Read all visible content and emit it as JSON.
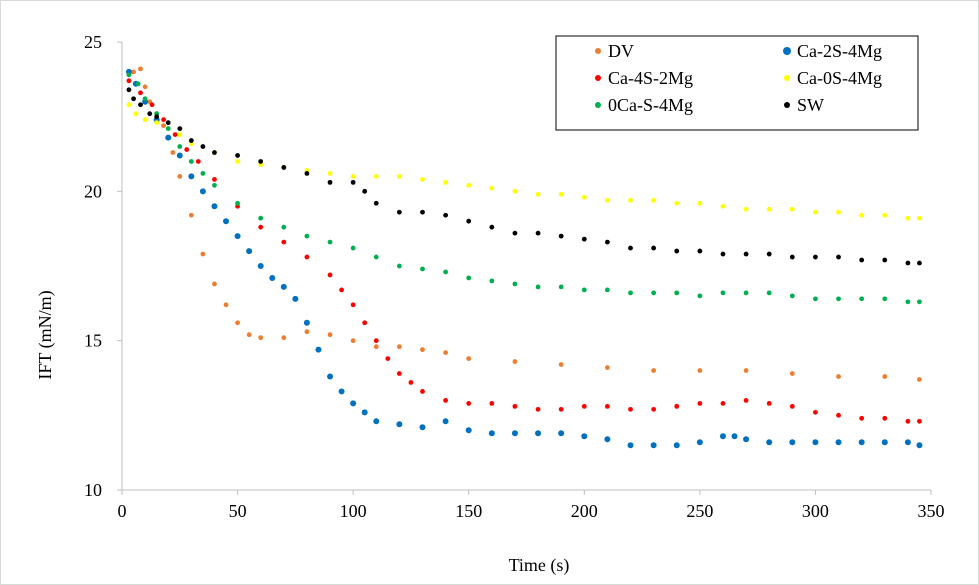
{
  "chart_data": {
    "type": "scatter",
    "title": "",
    "xlabel": "Time (s)",
    "ylabel": "IFT (mN/m)",
    "xlim": [
      0,
      350
    ],
    "ylim": [
      10,
      25
    ],
    "x_ticks": [
      0,
      50,
      100,
      150,
      200,
      250,
      300,
      350
    ],
    "y_ticks": [
      10,
      15,
      20,
      25
    ],
    "grid": false,
    "legend_position": "top-right",
    "series": [
      {
        "name": "DV",
        "color": "#ED7D31",
        "points": [
          [
            3,
            23.9
          ],
          [
            5,
            24.0
          ],
          [
            8,
            24.1
          ],
          [
            10,
            23.5
          ],
          [
            12,
            23.0
          ],
          [
            15,
            22.6
          ],
          [
            18,
            22.2
          ],
          [
            20,
            21.8
          ],
          [
            22,
            21.3
          ],
          [
            25,
            20.5
          ],
          [
            30,
            19.2
          ],
          [
            35,
            17.9
          ],
          [
            40,
            16.9
          ],
          [
            45,
            16.2
          ],
          [
            50,
            15.6
          ],
          [
            55,
            15.2
          ],
          [
            60,
            15.1
          ],
          [
            70,
            15.1
          ],
          [
            80,
            15.3
          ],
          [
            90,
            15.2
          ],
          [
            100,
            15.0
          ],
          [
            110,
            14.8
          ],
          [
            120,
            14.8
          ],
          [
            130,
            14.7
          ],
          [
            140,
            14.6
          ],
          [
            150,
            14.4
          ],
          [
            170,
            14.3
          ],
          [
            190,
            14.2
          ],
          [
            210,
            14.1
          ],
          [
            230,
            14.0
          ],
          [
            250,
            14.0
          ],
          [
            270,
            14.0
          ],
          [
            290,
            13.9
          ],
          [
            310,
            13.8
          ],
          [
            330,
            13.8
          ],
          [
            345,
            13.7
          ]
        ]
      },
      {
        "name": "Ca-2S-4Mg",
        "color": "#0070C0",
        "points": [
          [
            3,
            24.0
          ],
          [
            6,
            23.6
          ],
          [
            10,
            23.0
          ],
          [
            15,
            22.4
          ],
          [
            20,
            21.8
          ],
          [
            25,
            21.2
          ],
          [
            30,
            20.5
          ],
          [
            35,
            20.0
          ],
          [
            40,
            19.5
          ],
          [
            45,
            19.0
          ],
          [
            50,
            18.5
          ],
          [
            55,
            18.0
          ],
          [
            60,
            17.5
          ],
          [
            65,
            17.1
          ],
          [
            70,
            16.8
          ],
          [
            75,
            16.4
          ],
          [
            80,
            15.6
          ],
          [
            85,
            14.7
          ],
          [
            90,
            13.8
          ],
          [
            95,
            13.3
          ],
          [
            100,
            12.9
          ],
          [
            105,
            12.6
          ],
          [
            110,
            12.3
          ],
          [
            120,
            12.2
          ],
          [
            130,
            12.1
          ],
          [
            140,
            12.3
          ],
          [
            150,
            12.0
          ],
          [
            160,
            11.9
          ],
          [
            170,
            11.9
          ],
          [
            180,
            11.9
          ],
          [
            190,
            11.9
          ],
          [
            200,
            11.8
          ],
          [
            210,
            11.7
          ],
          [
            220,
            11.5
          ],
          [
            230,
            11.5
          ],
          [
            240,
            11.5
          ],
          [
            250,
            11.6
          ],
          [
            260,
            11.8
          ],
          [
            265,
            11.8
          ],
          [
            270,
            11.7
          ],
          [
            280,
            11.6
          ],
          [
            290,
            11.6
          ],
          [
            300,
            11.6
          ],
          [
            310,
            11.6
          ],
          [
            320,
            11.6
          ],
          [
            330,
            11.6
          ],
          [
            340,
            11.6
          ],
          [
            345,
            11.5
          ]
        ]
      },
      {
        "name": "Ca-4S-2Mg",
        "color": "#FF0000",
        "points": [
          [
            3,
            23.7
          ],
          [
            8,
            23.3
          ],
          [
            13,
            22.9
          ],
          [
            18,
            22.4
          ],
          [
            23,
            21.9
          ],
          [
            28,
            21.4
          ],
          [
            33,
            21.0
          ],
          [
            40,
            20.4
          ],
          [
            50,
            19.5
          ],
          [
            60,
            18.8
          ],
          [
            70,
            18.3
          ],
          [
            80,
            17.8
          ],
          [
            90,
            17.2
          ],
          [
            95,
            16.7
          ],
          [
            100,
            16.2
          ],
          [
            105,
            15.6
          ],
          [
            110,
            15.0
          ],
          [
            115,
            14.4
          ],
          [
            120,
            13.9
          ],
          [
            125,
            13.6
          ],
          [
            130,
            13.3
          ],
          [
            140,
            13.0
          ],
          [
            150,
            12.9
          ],
          [
            160,
            12.9
          ],
          [
            170,
            12.8
          ],
          [
            180,
            12.7
          ],
          [
            190,
            12.7
          ],
          [
            200,
            12.8
          ],
          [
            210,
            12.8
          ],
          [
            220,
            12.7
          ],
          [
            230,
            12.7
          ],
          [
            240,
            12.8
          ],
          [
            250,
            12.9
          ],
          [
            260,
            12.9
          ],
          [
            270,
            13.0
          ],
          [
            280,
            12.9
          ],
          [
            290,
            12.8
          ],
          [
            300,
            12.6
          ],
          [
            310,
            12.5
          ],
          [
            320,
            12.4
          ],
          [
            330,
            12.4
          ],
          [
            340,
            12.3
          ],
          [
            345,
            12.3
          ]
        ]
      },
      {
        "name": "Ca-0S-4Mg",
        "color": "#FFFF00",
        "points": [
          [
            3,
            22.9
          ],
          [
            6,
            22.6
          ],
          [
            10,
            22.4
          ],
          [
            15,
            22.3
          ],
          [
            20,
            22.1
          ],
          [
            25,
            21.9
          ],
          [
            30,
            21.6
          ],
          [
            40,
            21.3
          ],
          [
            50,
            21.0
          ],
          [
            60,
            20.9
          ],
          [
            70,
            20.8
          ],
          [
            80,
            20.7
          ],
          [
            90,
            20.6
          ],
          [
            100,
            20.5
          ],
          [
            110,
            20.5
          ],
          [
            120,
            20.5
          ],
          [
            130,
            20.4
          ],
          [
            140,
            20.3
          ],
          [
            150,
            20.2
          ],
          [
            160,
            20.1
          ],
          [
            170,
            20.0
          ],
          [
            180,
            19.9
          ],
          [
            190,
            19.9
          ],
          [
            200,
            19.8
          ],
          [
            210,
            19.7
          ],
          [
            220,
            19.7
          ],
          [
            230,
            19.7
          ],
          [
            240,
            19.6
          ],
          [
            250,
            19.6
          ],
          [
            260,
            19.5
          ],
          [
            270,
            19.4
          ],
          [
            280,
            19.4
          ],
          [
            290,
            19.4
          ],
          [
            300,
            19.3
          ],
          [
            310,
            19.3
          ],
          [
            320,
            19.2
          ],
          [
            330,
            19.2
          ],
          [
            340,
            19.1
          ],
          [
            345,
            19.1
          ]
        ]
      },
      {
        "name": "0Ca-S-4Mg",
        "color": "#00B050",
        "points": [
          [
            3,
            23.9
          ],
          [
            7,
            23.6
          ],
          [
            10,
            23.1
          ],
          [
            15,
            22.6
          ],
          [
            20,
            22.1
          ],
          [
            25,
            21.5
          ],
          [
            30,
            21.0
          ],
          [
            35,
            20.6
          ],
          [
            40,
            20.2
          ],
          [
            50,
            19.6
          ],
          [
            60,
            19.1
          ],
          [
            70,
            18.8
          ],
          [
            80,
            18.5
          ],
          [
            90,
            18.3
          ],
          [
            100,
            18.1
          ],
          [
            110,
            17.8
          ],
          [
            120,
            17.5
          ],
          [
            130,
            17.4
          ],
          [
            140,
            17.3
          ],
          [
            150,
            17.1
          ],
          [
            160,
            17.0
          ],
          [
            170,
            16.9
          ],
          [
            180,
            16.8
          ],
          [
            190,
            16.8
          ],
          [
            200,
            16.7
          ],
          [
            210,
            16.7
          ],
          [
            220,
            16.6
          ],
          [
            230,
            16.6
          ],
          [
            240,
            16.6
          ],
          [
            250,
            16.5
          ],
          [
            260,
            16.6
          ],
          [
            270,
            16.6
          ],
          [
            280,
            16.6
          ],
          [
            290,
            16.5
          ],
          [
            300,
            16.4
          ],
          [
            310,
            16.4
          ],
          [
            320,
            16.4
          ],
          [
            330,
            16.4
          ],
          [
            340,
            16.3
          ],
          [
            345,
            16.3
          ]
        ]
      },
      {
        "name": "SW",
        "color": "#000000",
        "points": [
          [
            3,
            23.4
          ],
          [
            5,
            23.1
          ],
          [
            8,
            22.9
          ],
          [
            12,
            22.6
          ],
          [
            15,
            22.5
          ],
          [
            20,
            22.3
          ],
          [
            25,
            22.1
          ],
          [
            30,
            21.7
          ],
          [
            35,
            21.5
          ],
          [
            40,
            21.3
          ],
          [
            50,
            21.2
          ],
          [
            60,
            21.0
          ],
          [
            70,
            20.8
          ],
          [
            80,
            20.6
          ],
          [
            90,
            20.3
          ],
          [
            100,
            20.3
          ],
          [
            105,
            20.0
          ],
          [
            110,
            19.6
          ],
          [
            120,
            19.3
          ],
          [
            130,
            19.3
          ],
          [
            140,
            19.2
          ],
          [
            150,
            19.0
          ],
          [
            160,
            18.8
          ],
          [
            170,
            18.6
          ],
          [
            180,
            18.6
          ],
          [
            190,
            18.5
          ],
          [
            200,
            18.4
          ],
          [
            210,
            18.3
          ],
          [
            220,
            18.1
          ],
          [
            230,
            18.1
          ],
          [
            240,
            18.0
          ],
          [
            250,
            18.0
          ],
          [
            260,
            17.9
          ],
          [
            270,
            17.9
          ],
          [
            280,
            17.9
          ],
          [
            290,
            17.8
          ],
          [
            300,
            17.8
          ],
          [
            310,
            17.8
          ],
          [
            320,
            17.7
          ],
          [
            330,
            17.7
          ],
          [
            340,
            17.6
          ],
          [
            345,
            17.6
          ]
        ]
      }
    ]
  }
}
